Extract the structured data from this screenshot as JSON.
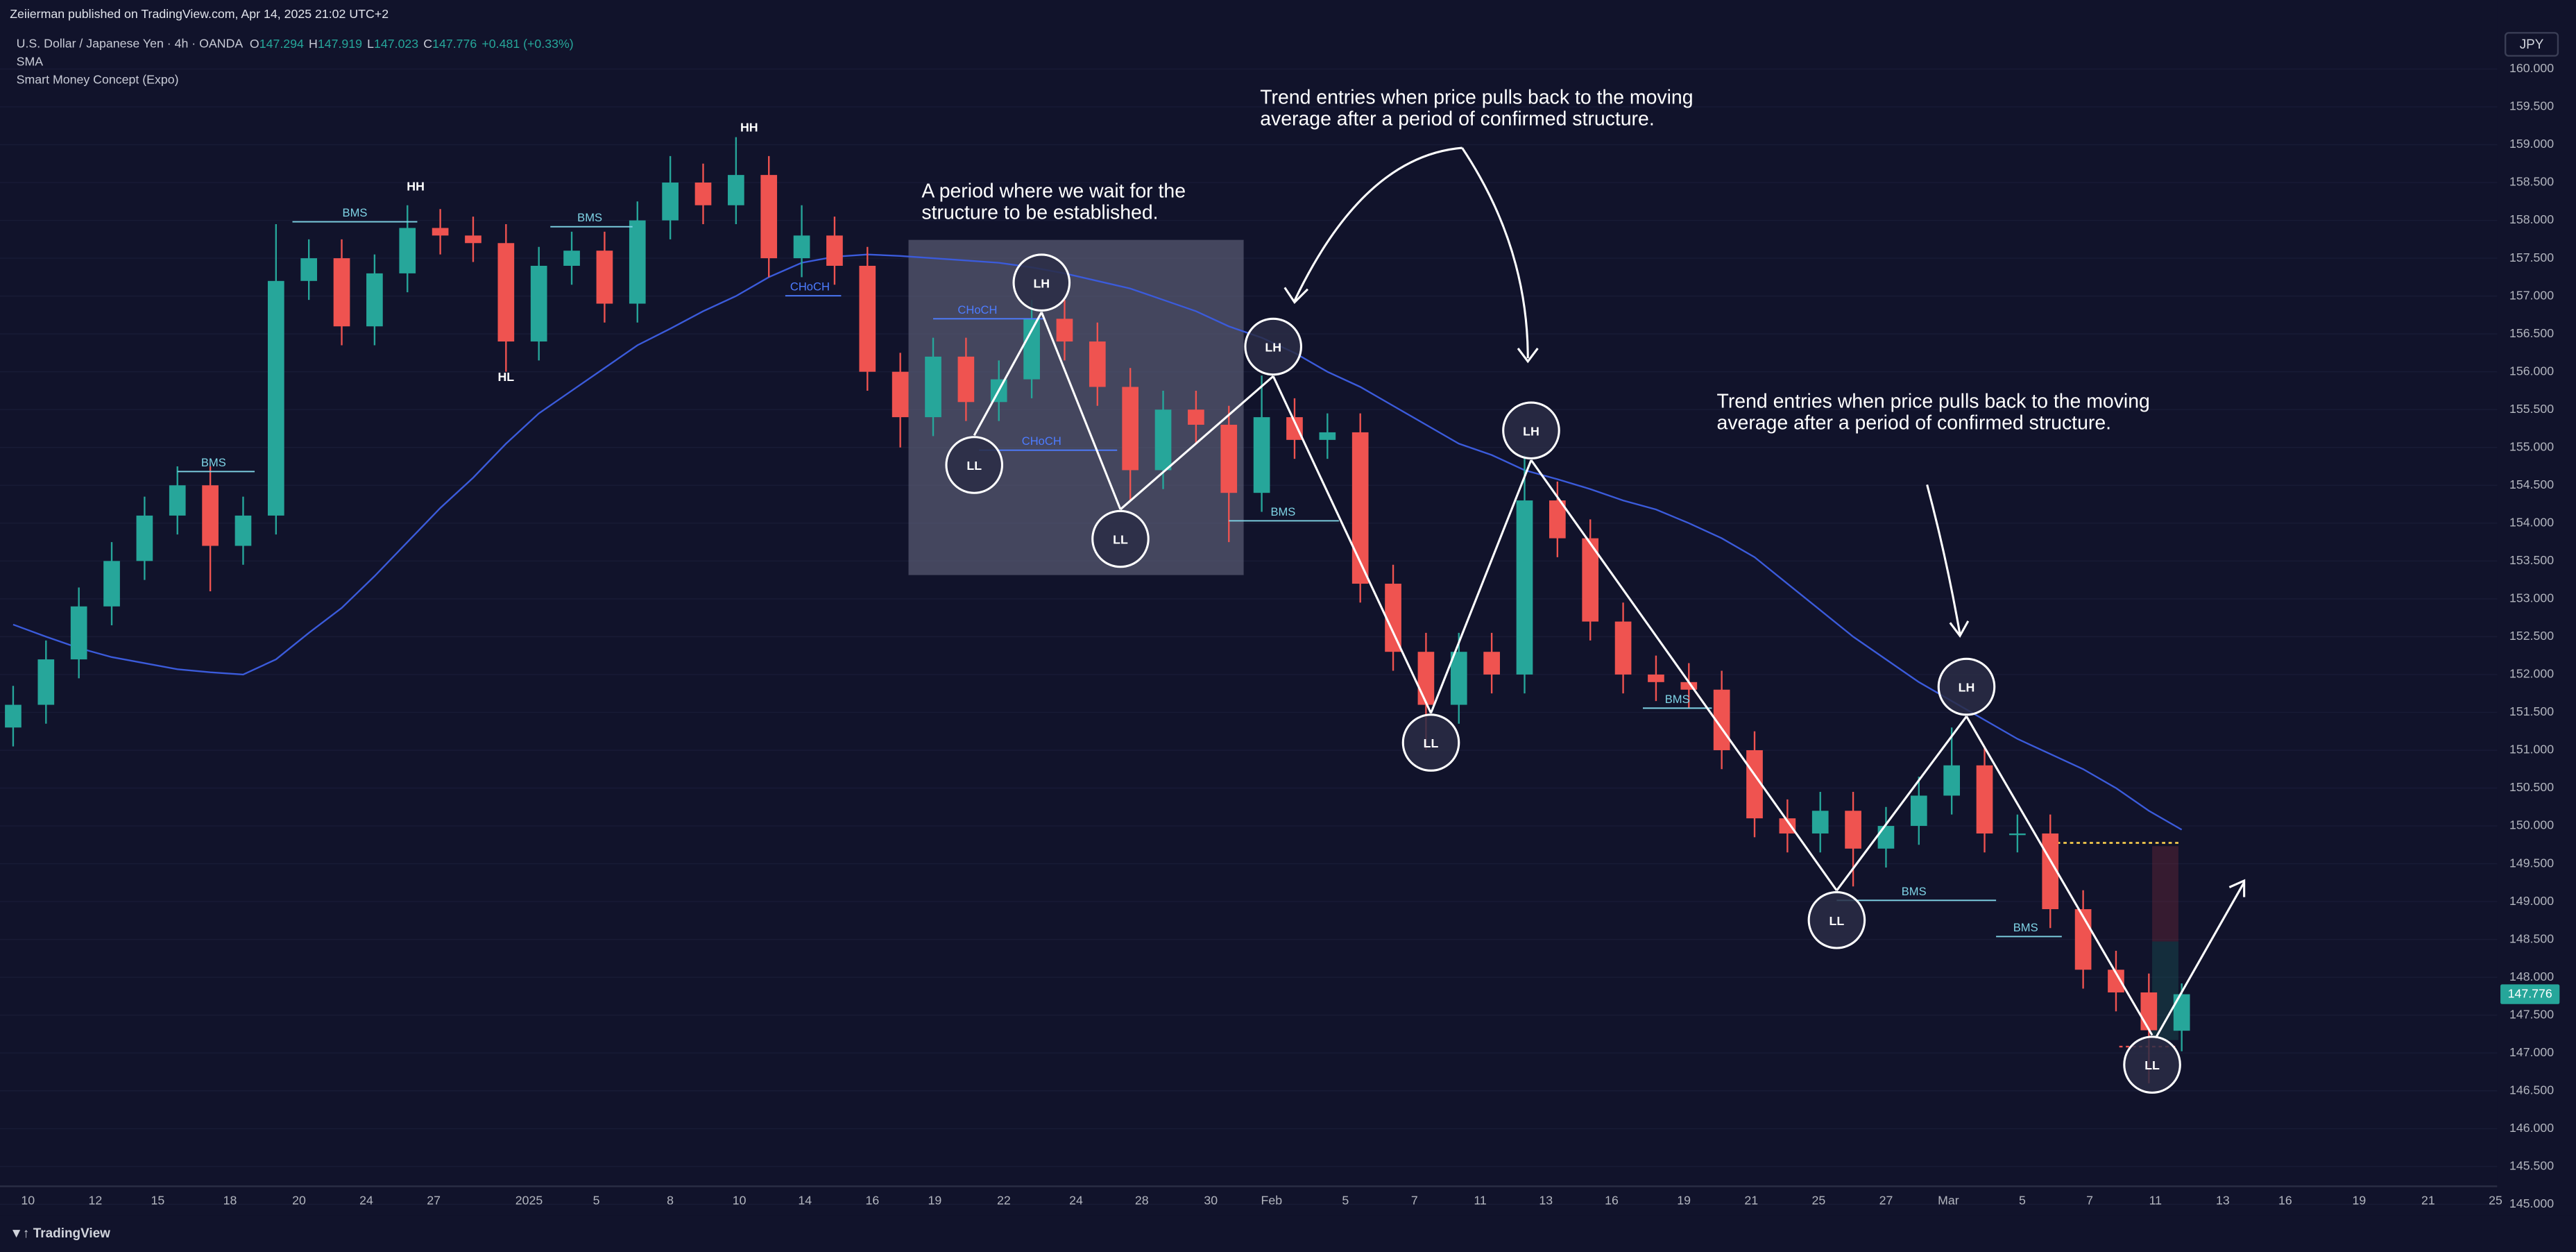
{
  "header": {
    "publisher": "Zeiierman published on TradingView.com, Apr 14, 2025 21:02 UTC+2",
    "symbol": "U.S. Dollar / Japanese Yen · 4h · OANDA",
    "ohlc": [
      {
        "key": "O",
        "value": 147.294
      },
      {
        "key": "H",
        "value": 147.919
      },
      {
        "key": "L",
        "value": 147.023
      },
      {
        "key": "C",
        "value": 147.776
      }
    ],
    "change": "+0.481 (+0.33%)",
    "indicators": [
      "SMA",
      "Smart Money Concept (Expo)"
    ],
    "currency": "JPY",
    "footer": "TradingView"
  },
  "chart_data": {
    "type": "candlestick",
    "up_color": "#26a69a",
    "down_color": "#ef5350",
    "x_labels": [
      "10",
      "12",
      "15",
      "18",
      "20",
      "24",
      "27",
      "2025",
      "5",
      "8",
      "10",
      "14",
      "16",
      "19",
      "22",
      "24",
      "28",
      "30",
      "Feb",
      "5",
      "7",
      "11",
      "13",
      "16",
      "19",
      "21",
      "25",
      "27",
      "Mar",
      "5",
      "7",
      "11",
      "13",
      "16",
      "19",
      "21",
      "25"
    ],
    "candles": {
      "open": [
        151.3,
        151.6,
        152.2,
        152.9,
        153.5,
        154.1,
        154.5,
        153.7,
        154.1,
        157.2,
        157.5,
        156.6,
        157.3,
        157.9,
        157.8,
        157.7,
        156.4,
        157.4,
        157.6,
        156.9,
        158.0,
        158.5,
        158.2,
        158.6,
        157.5,
        157.8,
        157.4,
        156.0,
        155.4,
        156.2,
        155.6,
        155.9,
        156.7,
        156.4,
        155.8,
        154.7,
        155.5,
        155.3,
        154.4,
        155.4,
        155.1,
        155.2,
        153.2,
        152.3,
        151.6,
        152.3,
        152.0,
        154.3,
        153.8,
        152.7,
        152.0,
        151.9,
        151.8,
        151.0,
        150.1,
        149.9,
        150.2,
        149.7,
        150.0,
        150.4,
        150.8,
        149.9,
        149.9,
        148.9,
        148.1,
        147.8,
        147.294
      ],
      "high": [
        151.85,
        152.45,
        153.15,
        153.75,
        154.35,
        154.75,
        154.75,
        154.35,
        157.95,
        157.75,
        157.75,
        157.55,
        158.2,
        158.15,
        158.05,
        157.95,
        157.65,
        157.85,
        157.85,
        158.25,
        158.85,
        158.75,
        159.1,
        158.85,
        158.2,
        158.05,
        157.65,
        156.25,
        156.45,
        156.45,
        156.15,
        156.95,
        156.95,
        156.65,
        156.05,
        155.75,
        155.75,
        155.55,
        155.95,
        155.65,
        155.45,
        155.45,
        153.45,
        152.55,
        152.55,
        152.55,
        154.9,
        154.55,
        154.05,
        152.95,
        152.25,
        152.15,
        152.05,
        151.25,
        150.35,
        150.45,
        150.45,
        150.25,
        150.65,
        151.3,
        151.05,
        150.15,
        150.15,
        149.15,
        148.35,
        148.05,
        147.919
      ],
      "low": [
        151.05,
        151.35,
        151.95,
        152.65,
        153.25,
        153.85,
        153.1,
        153.45,
        153.85,
        156.95,
        156.35,
        156.35,
        157.05,
        157.55,
        157.45,
        156.0,
        156.15,
        157.15,
        156.65,
        156.65,
        157.75,
        157.95,
        157.95,
        157.25,
        157.25,
        157.15,
        155.75,
        155.0,
        155.15,
        155.35,
        155.35,
        155.65,
        156.15,
        155.55,
        154.3,
        154.45,
        155.05,
        153.75,
        154.15,
        154.85,
        154.85,
        152.95,
        152.05,
        151.0,
        151.35,
        151.75,
        151.75,
        153.55,
        152.45,
        151.75,
        151.65,
        151.55,
        150.75,
        149.85,
        149.65,
        149.65,
        149.2,
        149.45,
        149.75,
        150.15,
        149.65,
        149.65,
        148.65,
        147.85,
        147.55,
        146.6,
        147.023
      ],
      "close": [
        151.6,
        152.2,
        152.9,
        153.5,
        154.1,
        154.5,
        153.7,
        154.1,
        157.2,
        157.5,
        156.6,
        157.3,
        157.9,
        157.8,
        157.7,
        156.4,
        157.4,
        157.6,
        156.9,
        158.0,
        158.5,
        158.2,
        158.6,
        157.5,
        157.8,
        157.4,
        156.0,
        155.4,
        156.2,
        155.6,
        155.9,
        156.7,
        156.4,
        155.8,
        154.7,
        155.5,
        155.3,
        154.4,
        155.4,
        155.1,
        155.2,
        153.2,
        152.3,
        151.6,
        152.3,
        152.0,
        154.3,
        153.8,
        152.7,
        152.0,
        151.9,
        151.8,
        151.0,
        150.1,
        149.9,
        150.2,
        149.7,
        150.0,
        150.4,
        150.8,
        149.9,
        149.9,
        148.9,
        148.1,
        147.8,
        147.3,
        147.776
      ]
    },
    "sma": {
      "name": "SMA",
      "color": "#3b5bdb",
      "values": [
        152.66,
        152.5,
        152.35,
        152.23,
        152.15,
        152.07,
        152.03,
        152.0,
        152.2,
        152.55,
        152.88,
        153.3,
        153.75,
        154.2,
        154.6,
        155.05,
        155.45,
        155.75,
        156.05,
        156.35,
        156.57,
        156.8,
        157.0,
        157.25,
        157.44,
        157.52,
        157.55,
        157.53,
        157.5,
        157.47,
        157.44,
        157.38,
        157.3,
        157.2,
        157.1,
        156.95,
        156.8,
        156.6,
        156.45,
        156.25,
        156.0,
        155.8,
        155.55,
        155.3,
        155.05,
        154.9,
        154.7,
        154.58,
        154.45,
        154.3,
        154.18,
        154.0,
        153.8,
        153.55,
        153.2,
        152.85,
        152.5,
        152.2,
        151.9,
        151.65,
        151.4,
        151.15,
        150.95,
        150.75,
        150.5,
        150.2,
        149.95
      ]
    },
    "last_price": 147.776,
    "ylim": [
      145,
      160
    ],
    "yticks": [
      {
        "value": 145,
        "label": "145.000"
      },
      {
        "value": 145.5,
        "label": "145.500"
      },
      {
        "value": 146,
        "label": "146.000"
      },
      {
        "value": 146.5,
        "label": "146.500"
      },
      {
        "value": 147,
        "label": "147.000"
      },
      {
        "value": 147.5,
        "label": "147.500"
      },
      {
        "value": 148,
        "label": "148.000"
      },
      {
        "value": 148.5,
        "label": "148.500"
      },
      {
        "value": 149,
        "label": "149.000"
      },
      {
        "value": 149.5,
        "label": "149.500"
      },
      {
        "value": 150,
        "label": "150.000"
      },
      {
        "value": 150.5,
        "label": "150.500"
      },
      {
        "value": 151,
        "label": "151.000"
      },
      {
        "value": 151.5,
        "label": "151.500"
      },
      {
        "value": 152,
        "label": "152.000"
      },
      {
        "value": 152.5,
        "label": "152.500"
      },
      {
        "value": 153,
        "label": "153.000"
      },
      {
        "value": 153.5,
        "label": "153.500"
      },
      {
        "value": 154,
        "label": "154.000"
      },
      {
        "value": 154.5,
        "label": "154.500"
      },
      {
        "value": 155,
        "label": "155.000"
      },
      {
        "value": 155.5,
        "label": "155.500"
      },
      {
        "value": 156,
        "label": "156.000"
      },
      {
        "value": 156.5,
        "label": "156.500"
      },
      {
        "value": 157,
        "label": "157.000"
      },
      {
        "value": 157.5,
        "label": "157.500"
      },
      {
        "value": 158,
        "label": "158.000"
      },
      {
        "value": 158.5,
        "label": "158.500"
      },
      {
        "value": 159,
        "label": "159.000"
      },
      {
        "value": 159.5,
        "label": "159.500"
      },
      {
        "value": 160,
        "label": "160.000"
      }
    ],
    "structure_circles": [
      "LL",
      "LH",
      "LL",
      "LH",
      "LL",
      "LH",
      "LL",
      "LH",
      "LL"
    ],
    "swing_labels": [
      "HH",
      "HH",
      "HL"
    ],
    "break_labels": [
      "BMS",
      "BMS",
      "BMS",
      "BMS",
      "BMS",
      "BMS",
      "BMS",
      "CHoCH",
      "CHoCH",
      "CHoCH"
    ],
    "notes": [
      {
        "lines": [
          "A period where we wait for the",
          "structure to be established."
        ]
      },
      {
        "lines": [
          "Trend entries when price pulls back to the moving",
          "average after a period of confirmed structure."
        ]
      },
      {
        "lines": [
          "Trend entries when price pulls back to the moving",
          "average after a period of confirmed structure."
        ]
      }
    ]
  }
}
